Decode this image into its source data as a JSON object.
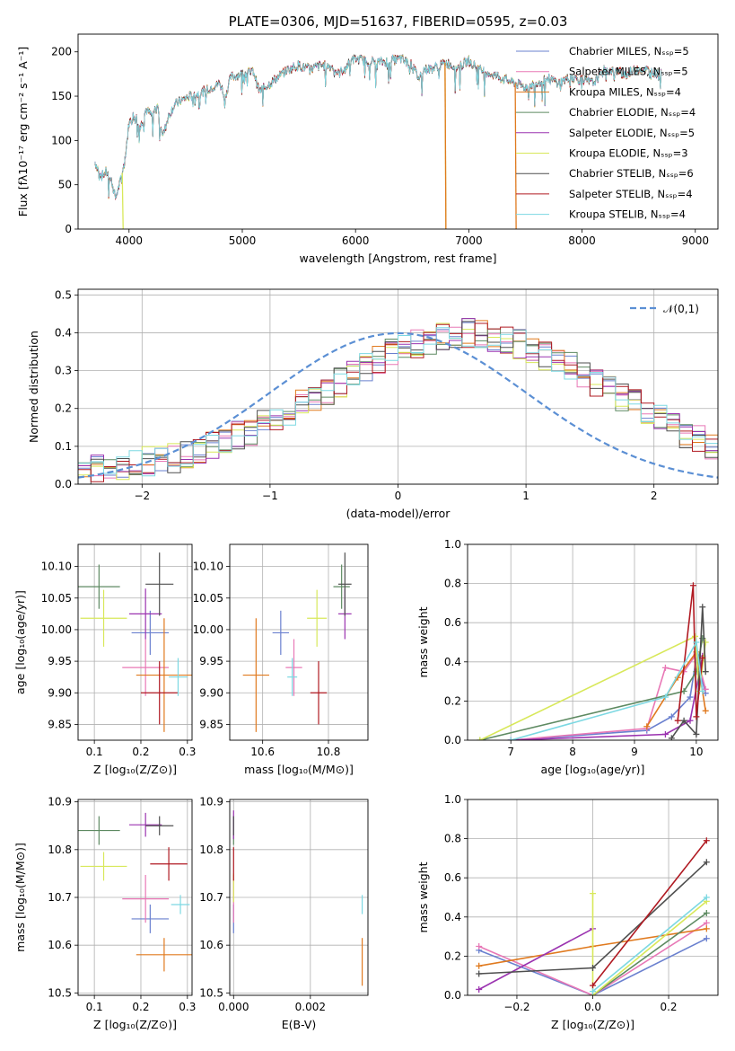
{
  "colors": [
    "#6a80cf",
    "#e878b6",
    "#e07a1f",
    "#5e8a62",
    "#9b33b0",
    "#d8e85a",
    "#4f4f4f",
    "#b01a22",
    "#7cd8e2"
  ],
  "chart_data": [
    {
      "id": "spectrum",
      "type": "line",
      "title": "PLATE=0306, MJD=51637, FIBERID=0595, z=0.03",
      "xlabel": "wavelength [Angstrom, rest frame]",
      "ylabel": "Flux [fλ10⁻¹⁷ erg cm⁻² s⁻¹ A⁻¹]",
      "xlim": [
        3550,
        9200
      ],
      "ylim": [
        0,
        220
      ],
      "xticks": [
        4000,
        5000,
        6000,
        7000,
        8000,
        9000
      ],
      "yticks": [
        0,
        50,
        100,
        150,
        200
      ],
      "grid": false,
      "legend_placement": "top-right",
      "series": [
        {
          "name": "Chabrier MILES, Nₛₛₚ=5"
        },
        {
          "name": "Salpeter MILES, Nₛₛₚ=5"
        },
        {
          "name": "Kroupa MILES, Nₛₛₚ=4"
        },
        {
          "name": "Chabrier ELODIE, Nₛₛₚ=4"
        },
        {
          "name": "Salpeter ELODIE, Nₛₛₚ=5"
        },
        {
          "name": "Kroupa ELODIE, Nₛₛₚ=3"
        },
        {
          "name": "Chabrier STELIB, Nₛₛₚ=6"
        },
        {
          "name": "Salpeter STELIB, Nₛₛₚ=4"
        },
        {
          "name": "Kroupa STELIB, Nₛₛₚ=4"
        }
      ],
      "envelope": {
        "x": [
          3700,
          3760,
          3800,
          3850,
          3880,
          3920,
          3960,
          4000,
          4050,
          4100,
          4150,
          4200,
          4250,
          4300,
          4350,
          4400,
          4500,
          4600,
          4700,
          4800,
          4850,
          4900,
          5000,
          5100,
          5150,
          5200,
          5300,
          5400,
          5500,
          5600,
          5700,
          5800,
          5850,
          5890,
          5950,
          6000,
          6100,
          6200,
          6300,
          6400,
          6500,
          6560,
          6600,
          6700,
          6800,
          6900,
          7000,
          7100,
          7200,
          7300,
          7400,
          7500,
          7600,
          7700,
          7800,
          7900,
          8000,
          8100,
          8200,
          8300,
          8400,
          8500,
          8600,
          8700
        ],
        "y": [
          75,
          60,
          65,
          52,
          35,
          52,
          75,
          120,
          130,
          115,
          135,
          128,
          140,
          105,
          128,
          140,
          148,
          152,
          158,
          165,
          150,
          172,
          175,
          178,
          155,
          160,
          170,
          180,
          185,
          180,
          185,
          183,
          175,
          180,
          188,
          192,
          190,
          188,
          190,
          192,
          185,
          170,
          180,
          182,
          188,
          182,
          190,
          180,
          175,
          170,
          165,
          160,
          165,
          170,
          165,
          172,
          168,
          165,
          180,
          178,
          175,
          182,
          178,
          175
        ]
      },
      "spikes": [
        {
          "series": 5,
          "x": 3940,
          "to": 0
        },
        {
          "series": 5,
          "x": 6790,
          "to": 0
        },
        {
          "series": 2,
          "x": 6790,
          "to": 0
        },
        {
          "series": 2,
          "x": 7410,
          "to": 0
        }
      ]
    },
    {
      "id": "residuals",
      "type": "bar",
      "xlabel": "(data-model)/error",
      "ylabel": "Normed distribution",
      "xlim": [
        -2.5,
        2.5
      ],
      "ylim": [
        0,
        0.515
      ],
      "xticks": [
        -2,
        -1,
        0,
        1,
        2
      ],
      "yticks": [
        0.0,
        0.1,
        0.2,
        0.3,
        0.4,
        0.5
      ],
      "grid": true,
      "legend_placement": "top-right",
      "legend": "𝒩(0,1)",
      "reference_curve": "normal(0,1)",
      "bin_width": 0.1,
      "bin_start": -2.5,
      "base_hist": [
        0.03,
        0.04,
        0.04,
        0.05,
        0.05,
        0.06,
        0.06,
        0.07,
        0.08,
        0.09,
        0.1,
        0.11,
        0.13,
        0.14,
        0.16,
        0.18,
        0.19,
        0.21,
        0.23,
        0.25,
        0.27,
        0.29,
        0.31,
        0.33,
        0.35,
        0.36,
        0.37,
        0.38,
        0.39,
        0.4,
        0.4,
        0.4,
        0.39,
        0.38,
        0.37,
        0.36,
        0.34,
        0.33,
        0.31,
        0.29,
        0.27,
        0.25,
        0.23,
        0.21,
        0.19,
        0.17,
        0.15,
        0.13,
        0.12,
        0.1
      ]
    },
    {
      "id": "age-vs-Z",
      "type": "scatter",
      "xlabel": "Z [log₁₀(Z/Z⊙)]",
      "ylabel": "age  [log₁₀(age/yr)]",
      "xlim": [
        0.065,
        0.31
      ],
      "ylim": [
        9.825,
        10.135
      ],
      "xticks": [
        0.1,
        0.2,
        0.3
      ],
      "yticks": [
        9.85,
        9.9,
        9.95,
        10.0,
        10.05,
        10.1
      ],
      "grid": true,
      "points": [
        {
          "series": 0,
          "x": 0.22,
          "y": 9.995,
          "xerr": 0.04,
          "yerr": 0.035
        },
        {
          "series": 1,
          "x": 0.21,
          "y": 9.94,
          "xerr": 0.05,
          "yerr": 0.045
        },
        {
          "series": 2,
          "x": 0.25,
          "y": 9.928,
          "xerr": 0.06,
          "yerr": 0.09
        },
        {
          "series": 3,
          "x": 0.11,
          "y": 10.068,
          "xerr": 0.045,
          "yerr": 0.035
        },
        {
          "series": 4,
          "x": 0.21,
          "y": 10.025,
          "xerr": 0.035,
          "yerr": 0.04
        },
        {
          "series": 5,
          "x": 0.12,
          "y": 10.018,
          "xerr": 0.05,
          "yerr": 0.045
        },
        {
          "series": 6,
          "x": 0.24,
          "y": 10.072,
          "xerr": 0.03,
          "yerr": 0.05
        },
        {
          "series": 7,
          "x": 0.24,
          "y": 9.9,
          "xerr": 0.04,
          "yerr": 0.05
        },
        {
          "series": 8,
          "x": 0.28,
          "y": 9.925,
          "xerr": 0.02,
          "yerr": 0.03
        }
      ]
    },
    {
      "id": "age-vs-mass",
      "type": "scatter",
      "xlabel": "mass [log₁₀(M/M⊙)]",
      "ylabel": "",
      "xlim": [
        10.5,
        10.92
      ],
      "ylim": [
        9.825,
        10.135
      ],
      "xticks": [
        10.6,
        10.8
      ],
      "yticks": [
        9.85,
        9.9,
        9.95,
        10.0,
        10.05,
        10.1
      ],
      "grid": true,
      "points": [
        {
          "series": 0,
          "x": 10.655,
          "y": 9.995,
          "xerr": 0.025,
          "yerr": 0.035
        },
        {
          "series": 1,
          "x": 10.695,
          "y": 9.94,
          "xerr": 0.025,
          "yerr": 0.045
        },
        {
          "series": 2,
          "x": 10.58,
          "y": 9.928,
          "xerr": 0.04,
          "yerr": 0.09
        },
        {
          "series": 3,
          "x": 10.84,
          "y": 10.068,
          "xerr": 0.025,
          "yerr": 0.035
        },
        {
          "series": 4,
          "x": 10.85,
          "y": 10.025,
          "xerr": 0.02,
          "yerr": 0.04
        },
        {
          "series": 5,
          "x": 10.765,
          "y": 10.018,
          "xerr": 0.03,
          "yerr": 0.045
        },
        {
          "series": 6,
          "x": 10.85,
          "y": 10.072,
          "xerr": 0.02,
          "yerr": 0.05
        },
        {
          "series": 7,
          "x": 10.77,
          "y": 9.9,
          "xerr": 0.025,
          "yerr": 0.05
        },
        {
          "series": 8,
          "x": 10.69,
          "y": 9.925,
          "xerr": 0.015,
          "yerr": 0.03
        }
      ]
    },
    {
      "id": "weight-vs-age",
      "type": "line",
      "xlabel": "age  [log₁₀(age/yr)]",
      "ylabel": "mass weight",
      "xlim": [
        6.3,
        10.35
      ],
      "ylim": [
        0,
        1
      ],
      "xticks": [
        7,
        8,
        9,
        10
      ],
      "yticks": [
        0.0,
        0.2,
        0.4,
        0.6,
        0.8,
        1.0
      ],
      "grid": true,
      "series": [
        {
          "x": [
            7.0,
            9.2,
            9.6,
            9.9,
            10.0,
            10.15
          ],
          "y": [
            0.0,
            0.05,
            0.12,
            0.22,
            0.42,
            0.24
          ]
        },
        {
          "x": [
            7.0,
            9.2,
            9.5,
            9.8,
            10.0,
            10.15
          ],
          "y": [
            0.0,
            0.06,
            0.37,
            0.35,
            0.44,
            0.26
          ]
        },
        {
          "x": [
            9.2,
            9.7,
            10.0,
            10.15
          ],
          "y": [
            0.07,
            0.32,
            0.45,
            0.15
          ]
        },
        {
          "x": [
            6.5,
            9.8,
            10.0,
            10.1
          ],
          "y": [
            0.0,
            0.25,
            0.35,
            0.52
          ]
        },
        {
          "x": [
            7.0,
            9.5,
            9.9,
            10.1
          ],
          "y": [
            0.0,
            0.03,
            0.1,
            0.43
          ]
        },
        {
          "x": [
            6.5,
            9.98,
            10.05,
            10.15
          ],
          "y": [
            0.0,
            0.53,
            0.25,
            0.5
          ]
        },
        {
          "x": [
            9.6,
            9.8,
            10.0,
            10.1,
            10.15
          ],
          "y": [
            0.01,
            0.1,
            0.03,
            0.68,
            0.35
          ]
        },
        {
          "x": [
            9.7,
            9.95,
            10.0,
            10.1
          ],
          "y": [
            0.1,
            0.79,
            0.12,
            0.42
          ]
        },
        {
          "x": [
            7.0,
            9.5,
            10.0,
            10.1
          ],
          "y": [
            0.0,
            0.22,
            0.5,
            0.25
          ]
        }
      ]
    },
    {
      "id": "mass-vs-Z",
      "type": "scatter",
      "xlabel": "Z [log₁₀(Z/Z⊙)]",
      "ylabel": "mass [log₁₀(M/M⊙)]",
      "xlim": [
        0.065,
        0.31
      ],
      "ylim": [
        10.495,
        10.905
      ],
      "xticks": [
        0.1,
        0.2,
        0.3
      ],
      "yticks": [
        10.5,
        10.6,
        10.7,
        10.8,
        10.9
      ],
      "grid": true,
      "points": [
        {
          "series": 0,
          "x": 0.22,
          "y": 10.655,
          "xerr": 0.04,
          "yerr": 0.03
        },
        {
          "series": 1,
          "x": 0.21,
          "y": 10.697,
          "xerr": 0.05,
          "yerr": 0.05
        },
        {
          "series": 2,
          "x": 0.25,
          "y": 10.58,
          "xerr": 0.06,
          "yerr": 0.035
        },
        {
          "series": 3,
          "x": 0.11,
          "y": 10.84,
          "xerr": 0.045,
          "yerr": 0.03
        },
        {
          "series": 4,
          "x": 0.21,
          "y": 10.852,
          "xerr": 0.035,
          "yerr": 0.025
        },
        {
          "series": 5,
          "x": 0.12,
          "y": 10.765,
          "xerr": 0.05,
          "yerr": 0.03
        },
        {
          "series": 6,
          "x": 0.24,
          "y": 10.85,
          "xerr": 0.03,
          "yerr": 0.02
        },
        {
          "series": 7,
          "x": 0.26,
          "y": 10.77,
          "xerr": 0.04,
          "yerr": 0.035
        },
        {
          "series": 8,
          "x": 0.285,
          "y": 10.685,
          "xerr": 0.02,
          "yerr": 0.02
        }
      ]
    },
    {
      "id": "mass-vs-EBV",
      "type": "scatter",
      "xlabel": "E(B-V)",
      "ylabel": "",
      "xlim": [
        -0.0001,
        0.0035
      ],
      "ylim": [
        10.495,
        10.905
      ],
      "xticks": [
        0.0,
        0.002
      ],
      "yticks": [
        10.5,
        10.6,
        10.7,
        10.8,
        10.9
      ],
      "grid": true,
      "points": [
        {
          "series": 0,
          "x": 0.0,
          "y": 10.655,
          "xerr": 0,
          "yerr": 0.03
        },
        {
          "series": 1,
          "x": 0.0,
          "y": 10.697,
          "xerr": 0,
          "yerr": 0.05
        },
        {
          "series": 2,
          "x": 0.00335,
          "y": 10.565,
          "xerr": 0,
          "yerr": 0.05
        },
        {
          "series": 3,
          "x": 0.0,
          "y": 10.84,
          "xerr": 0,
          "yerr": 0.03
        },
        {
          "series": 4,
          "x": 0.0,
          "y": 10.852,
          "xerr": 0,
          "yerr": 0.03
        },
        {
          "series": 5,
          "x": 0.0,
          "y": 10.72,
          "xerr": 0,
          "yerr": 0.03
        },
        {
          "series": 6,
          "x": 0.0,
          "y": 10.85,
          "xerr": 0,
          "yerr": 0.02
        },
        {
          "series": 7,
          "x": 0.0,
          "y": 10.77,
          "xerr": 0,
          "yerr": 0.035
        },
        {
          "series": 8,
          "x": 0.00335,
          "y": 10.685,
          "xerr": 0,
          "yerr": 0.02
        }
      ]
    },
    {
      "id": "weight-vs-Z",
      "type": "line",
      "xlabel": "Z [log₁₀(Z/Z⊙)]",
      "ylabel": "mass weight",
      "xlim": [
        -0.33,
        0.33
      ],
      "ylim": [
        0,
        1
      ],
      "xticks": [
        -0.2,
        0.0,
        0.2
      ],
      "yticks": [
        0.0,
        0.2,
        0.4,
        0.6,
        0.8,
        1.0
      ],
      "grid": true,
      "series": [
        {
          "x": [
            -0.3,
            0.0,
            0.3
          ],
          "y": [
            0.23,
            0.0,
            0.29
          ]
        },
        {
          "x": [
            -0.3,
            0.0,
            0.3
          ],
          "y": [
            0.25,
            0.0,
            0.37
          ]
        },
        {
          "x": [
            -0.3,
            0.0,
            0.3
          ],
          "y": [
            0.15,
            0.25,
            0.34
          ]
        },
        {
          "x": [
            0.0,
            0.3
          ],
          "y": [
            0.0,
            0.42
          ]
        },
        {
          "x": [
            -0.3,
            0.0
          ],
          "y": [
            0.03,
            0.34
          ]
        },
        {
          "x": [
            0.0,
            0.0,
            0.3
          ],
          "y": [
            0.52,
            0.0,
            0.48
          ]
        },
        {
          "x": [
            -0.3,
            0.0,
            0.3
          ],
          "y": [
            0.11,
            0.14,
            0.68
          ]
        },
        {
          "x": [
            0.0,
            0.3
          ],
          "y": [
            0.05,
            0.79
          ]
        },
        {
          "x": [
            0.0,
            0.3
          ],
          "y": [
            0.02,
            0.5
          ]
        }
      ]
    }
  ]
}
